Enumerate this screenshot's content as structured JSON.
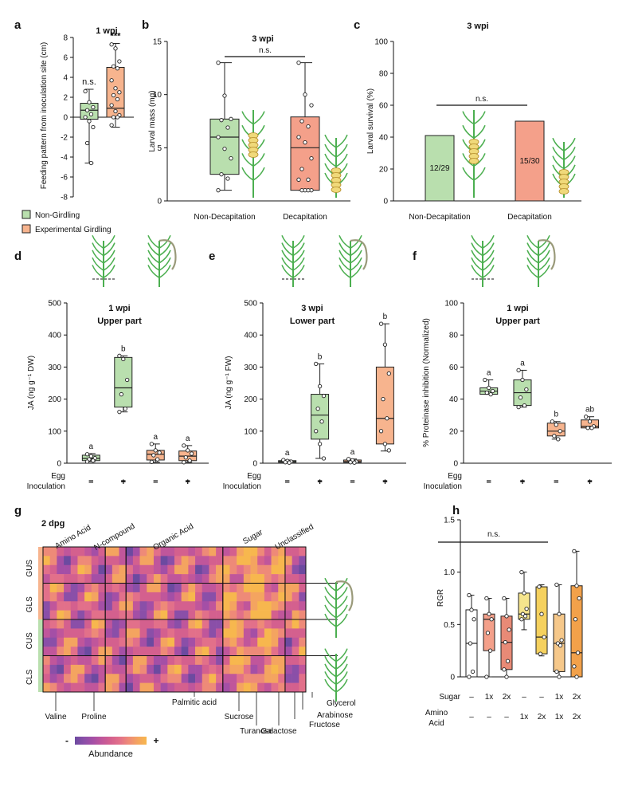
{
  "colors": {
    "green": "#b9dfae",
    "green_edge": "#222222",
    "orange": "#f7b48e",
    "red_bar": "#f4a08a",
    "yellow": "#f5e48c",
    "amber": "#f6c25e",
    "plant": "#4caf50",
    "girdled_plant": "#9a9a7a"
  },
  "legend_top": {
    "items": [
      {
        "label": "Non-Girdling",
        "color": "#b9dfae"
      },
      {
        "label": "Experimental Girdling",
        "color": "#f7b48e"
      }
    ]
  },
  "chart_data": [
    {
      "panel": "a",
      "type": "box",
      "title": "1 wpi",
      "ylabel": "Feeding pattern from inoculation site (cm)",
      "ylim": [
        -8,
        8
      ],
      "yticks": [
        -8,
        -6,
        -4,
        -2,
        0,
        2,
        4,
        6,
        8
      ],
      "series": [
        {
          "name": "Non-Girdling",
          "annotation": "n.s.",
          "min": -4.6,
          "q1": -0.2,
          "median": 0.7,
          "q3": 1.4,
          "max": 2.8,
          "points": [
            2.6,
            1.5,
            1.0,
            0.7,
            0.3,
            0.0,
            -0.4,
            -1.0,
            -2.6,
            -4.6
          ]
        },
        {
          "name": "Experimental Girdling",
          "annotation": "***",
          "min": -1.0,
          "q1": 0.0,
          "median": 0.9,
          "q3": 5.0,
          "max": 7.4,
          "points": [
            7.3,
            6.9,
            5.6,
            5.1,
            4.9,
            3.7,
            2.9,
            2.5,
            2.2,
            1.8,
            1.2,
            0.6,
            0.2,
            0.0,
            0.0,
            -0.8
          ]
        }
      ]
    },
    {
      "panel": "b",
      "type": "box",
      "title": "3 wpi",
      "ylabel": "Larval mass (mg)",
      "ylim": [
        0,
        15
      ],
      "yticks": [
        0,
        5,
        10,
        15
      ],
      "categories": [
        "Non-Decapitation",
        "Decapitation"
      ],
      "comparison": "n.s.",
      "series": [
        {
          "name": "Non-Decapitation",
          "min": 1.0,
          "q1": 2.5,
          "median": 6.0,
          "q3": 7.7,
          "max": 13.0,
          "points": [
            13.0,
            9.9,
            7.7,
            7.6,
            6.9,
            6.0,
            4.9,
            4.0,
            2.5,
            2.1,
            1.0
          ]
        },
        {
          "name": "Decapitation",
          "min": 1.0,
          "q1": 1.0,
          "median": 5.0,
          "q3": 7.9,
          "max": 13.0,
          "points": [
            13.0,
            10.0,
            9.0,
            7.5,
            7.0,
            6.0,
            5.5,
            4.0,
            3.0,
            2.0,
            2.0,
            1.0,
            1.0,
            1.0,
            1.0
          ]
        }
      ]
    },
    {
      "panel": "c",
      "type": "bar",
      "title": "3 wpi",
      "ylabel": "Larval survival (%)",
      "ylim": [
        0,
        100
      ],
      "yticks": [
        0,
        20,
        40,
        60,
        80,
        100
      ],
      "categories": [
        "Non-Decapitation",
        "Decapitation"
      ],
      "values": [
        41,
        50
      ],
      "bar_labels": [
        "12/29",
        "15/30"
      ],
      "comparison": "n.s."
    },
    {
      "panel": "d",
      "type": "box",
      "title": "1 wpi",
      "subtitle": "Upper part",
      "ylabel": "JA (ng g⁻¹ DW)",
      "ylim": [
        0,
        500
      ],
      "yticks": [
        0,
        100,
        200,
        300,
        400,
        500
      ],
      "row_labels": [
        "Egg",
        "Inoculation"
      ],
      "groups": [
        {
          "egg": "–",
          "inoc": "–",
          "color": "green",
          "letter": "a",
          "min": 5,
          "q1": 8,
          "median": 15,
          "q3": 25,
          "max": 30,
          "points": [
            28,
            22,
            16,
            12,
            8,
            5
          ]
        },
        {
          "egg": "–",
          "inoc": "+",
          "color": "green",
          "letter": "b",
          "min": 160,
          "q1": 175,
          "median": 235,
          "q3": 330,
          "max": 335,
          "points": [
            335,
            325,
            260,
            215,
            170,
            160
          ]
        },
        {
          "egg": "–",
          "inoc": "–",
          "color": "orange",
          "letter": "a",
          "min": 3,
          "q1": 10,
          "median": 28,
          "q3": 40,
          "max": 60,
          "points": [
            60,
            40,
            33,
            25,
            12,
            4
          ]
        },
        {
          "egg": "–",
          "inoc": "+",
          "color": "orange",
          "letter": "a",
          "min": 3,
          "q1": 8,
          "median": 22,
          "q3": 38,
          "max": 55,
          "points": [
            55,
            40,
            30,
            18,
            8,
            3
          ]
        }
      ]
    },
    {
      "panel": "e",
      "type": "box",
      "title": "3 wpi",
      "subtitle": "Lower part",
      "ylabel": "JA (ng g⁻¹ FW)",
      "ylim": [
        0,
        500
      ],
      "yticks": [
        0,
        100,
        200,
        300,
        400,
        500
      ],
      "row_labels": [
        "Egg",
        "Inoculation"
      ],
      "groups": [
        {
          "egg": "–",
          "inoc": "–",
          "color": "green",
          "letter": "a",
          "min": 2,
          "q1": 3,
          "median": 5,
          "q3": 8,
          "max": 10,
          "points": [
            10,
            7,
            5,
            3,
            2
          ]
        },
        {
          "egg": "–",
          "inoc": "+",
          "color": "green",
          "letter": "b",
          "min": 15,
          "q1": 75,
          "median": 150,
          "q3": 215,
          "max": 310,
          "points": [
            310,
            240,
            210,
            170,
            130,
            100,
            60,
            15
          ]
        },
        {
          "egg": "–",
          "inoc": "–",
          "color": "orange",
          "letter": "a",
          "min": 2,
          "q1": 3,
          "median": 5,
          "q3": 10,
          "max": 13,
          "points": [
            13,
            9,
            5,
            3,
            2
          ]
        },
        {
          "egg": "–",
          "inoc": "+",
          "color": "orange",
          "letter": "b",
          "min": 38,
          "q1": 60,
          "median": 140,
          "q3": 300,
          "max": 435,
          "points": [
            435,
            370,
            280,
            200,
            140,
            100,
            60,
            40
          ]
        }
      ]
    },
    {
      "panel": "f",
      "type": "box",
      "title": "1 wpi",
      "subtitle": "Upper part",
      "ylabel": "% Proteinase inhibition (Normalized)",
      "ylim": [
        0,
        100
      ],
      "yticks": [
        0,
        20,
        40,
        60,
        80,
        100
      ],
      "row_labels": [
        "Egg",
        "Inoculation"
      ],
      "groups": [
        {
          "egg": "–",
          "inoc": "–",
          "color": "green",
          "letter": "a",
          "min": 43,
          "q1": 43,
          "median": 45,
          "q3": 47,
          "max": 52,
          "points": [
            52,
            47,
            45,
            44,
            43
          ]
        },
        {
          "egg": "–",
          "inoc": "+",
          "color": "green",
          "letter": "a",
          "min": 35,
          "q1": 36,
          "median": 44,
          "q3": 52,
          "max": 58,
          "points": [
            58,
            52,
            46,
            41,
            36,
            35
          ]
        },
        {
          "egg": "–",
          "inoc": "–",
          "color": "orange",
          "letter": "b",
          "min": 15,
          "q1": 17,
          "median": 20,
          "q3": 25,
          "max": 26,
          "points": [
            26,
            24,
            20,
            17,
            15
          ]
        },
        {
          "egg": "–",
          "inoc": "+",
          "color": "orange",
          "letter": "ab",
          "min": 22,
          "q1": 22,
          "median": 23,
          "q3": 27,
          "max": 29,
          "points": [
            29,
            26,
            23,
            22,
            22
          ]
        }
      ]
    },
    {
      "panel": "g",
      "type": "heatmap",
      "title": "2 dpg",
      "rows": [
        "GUS",
        "GLS",
        "CUS",
        "CLS"
      ],
      "categories": [
        "Amino Acid",
        "N-compound",
        "Organic Acid",
        "Sugar",
        "Unclassified"
      ],
      "category_columns": [
        9,
        3,
        14,
        9,
        3
      ],
      "highlighted_metabolites": [
        "Valine",
        "Proline",
        "Palmitic acid",
        "Sucrose",
        "Turanose",
        "Galactose",
        "Fructose",
        "Arabinose",
        "Glycerol"
      ],
      "legend": {
        "title": "Abundance",
        "low": "-",
        "high": "+"
      }
    },
    {
      "panel": "h",
      "type": "box",
      "ylabel": "RGR",
      "ylim": [
        0,
        1.5
      ],
      "yticks": [
        0,
        0.5,
        1.0,
        1.5
      ],
      "ytick_labels": [
        "0",
        "0.5",
        "1.0",
        "1.5"
      ],
      "comparison": "n.s.",
      "row_labels": [
        "Sugar",
        "Amino Acid"
      ],
      "groups": [
        {
          "sugar": "–",
          "amino": "–",
          "color": "#ffffff",
          "min": 0.0,
          "q1": 0.0,
          "median": 0.32,
          "q3": 0.64,
          "max": 0.78,
          "points": [
            0.78,
            0.64,
            0.55,
            0.32,
            0.05,
            0.0
          ]
        },
        {
          "sugar": "1x",
          "amino": "–",
          "color": "#f4a08a",
          "min": 0.0,
          "q1": 0.25,
          "median": 0.55,
          "q3": 0.6,
          "max": 0.75,
          "points": [
            0.75,
            0.6,
            0.55,
            0.42,
            0.25,
            0.0
          ]
        },
        {
          "sugar": "2x",
          "amino": "–",
          "color": "#e88a76",
          "min": 0.0,
          "q1": 0.07,
          "median": 0.33,
          "q3": 0.58,
          "max": 0.75,
          "points": [
            0.75,
            0.58,
            0.45,
            0.33,
            0.15,
            0.07,
            0.0
          ]
        },
        {
          "sugar": "–",
          "amino": "1x",
          "color": "#f5e48c",
          "min": 0.45,
          "q1": 0.55,
          "median": 0.6,
          "q3": 0.8,
          "max": 1.0,
          "points": [
            1.0,
            0.8,
            0.65,
            0.6,
            0.58,
            0.55
          ]
        },
        {
          "sugar": "–",
          "amino": "2x",
          "color": "#f5d15e",
          "min": 0.2,
          "q1": 0.22,
          "median": 0.38,
          "q3": 0.86,
          "max": 0.88,
          "points": [
            0.86,
            0.6,
            0.38,
            0.22
          ]
        },
        {
          "sugar": "1x",
          "amino": "1x",
          "color": "#f6c88a",
          "min": 0.0,
          "q1": 0.05,
          "median": 0.32,
          "q3": 0.6,
          "max": 0.88,
          "points": [
            0.88,
            0.6,
            0.35,
            0.32,
            0.3,
            0.05,
            0.0
          ]
        },
        {
          "sugar": "2x",
          "amino": "2x",
          "color": "#f2a14a",
          "min": 0.0,
          "q1": 0.0,
          "median": 0.23,
          "q3": 0.87,
          "max": 1.2,
          "points": [
            1.2,
            0.87,
            0.75,
            0.55,
            0.23,
            0.1,
            0.0
          ]
        }
      ]
    }
  ],
  "panel_letters": [
    "a",
    "b",
    "c",
    "d",
    "e",
    "f",
    "g",
    "h"
  ]
}
